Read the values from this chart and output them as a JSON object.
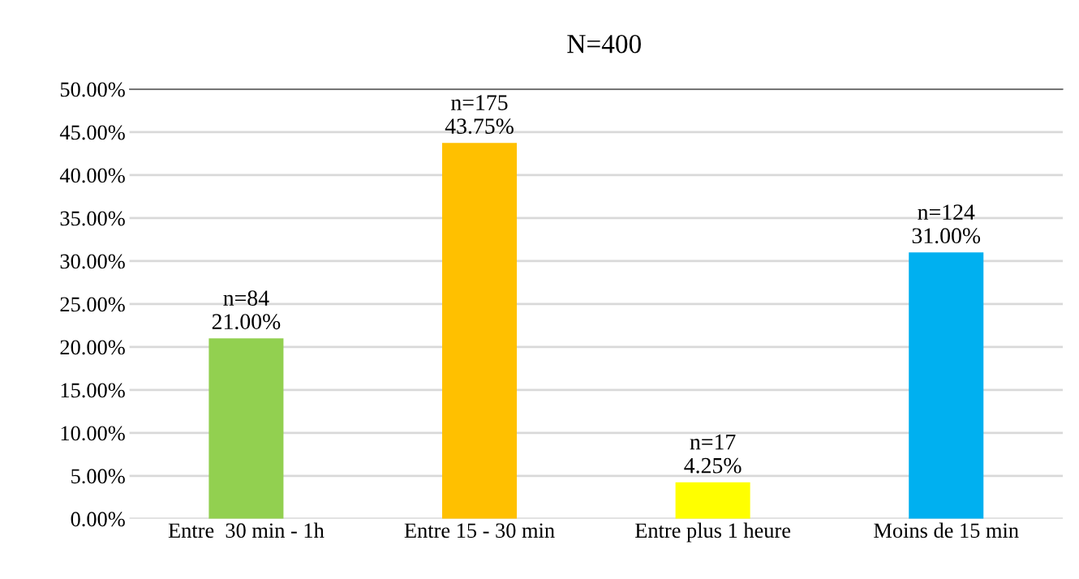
{
  "chart_data": {
    "type": "bar",
    "title": "N=400",
    "categories": [
      "Entre  30 min - 1h",
      "Entre 15 - 30 min",
      "Entre plus 1 heure",
      "Moins de 15 min"
    ],
    "values": [
      21.0,
      43.75,
      4.25,
      31.0
    ],
    "colors": [
      "#92d050",
      "#ffc000",
      "#ffff00",
      "#00b0f0"
    ],
    "value_labels": [
      "n=84\n21.00%",
      "n=175\n43.75%",
      "n=17\n4.25%",
      "n=124\n31.00%"
    ],
    "ylim": [
      0,
      50
    ],
    "yticks": [
      {
        "value": 0,
        "label": "0.00%"
      },
      {
        "value": 5,
        "label": "5.00%"
      },
      {
        "value": 10,
        "label": "10.00%"
      },
      {
        "value": 15,
        "label": "15.00%"
      },
      {
        "value": 20,
        "label": "20.00%"
      },
      {
        "value": 25,
        "label": "25.00%"
      },
      {
        "value": 30,
        "label": "30.00%"
      },
      {
        "value": 35,
        "label": "35.00%"
      },
      {
        "value": 40,
        "label": "40.00%"
      },
      {
        "value": 45,
        "label": "45.00%"
      },
      {
        "value": 50,
        "label": "50.00%"
      }
    ],
    "grid": "y"
  }
}
